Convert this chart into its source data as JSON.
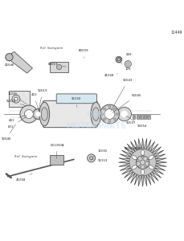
{
  "title": "11449",
  "bg_color": "#ffffff",
  "line_color": "#000000",
  "part_line_color": "#333333",
  "watermark_color": "#c8dff0",
  "watermark_text": "OEM\nMOTORPARTS",
  "ref_text_1": "Ref. Swingarm",
  "ref_text_2": "Ref. Swingarm",
  "figsize": [
    2.29,
    3.0
  ],
  "dpi": 100
}
